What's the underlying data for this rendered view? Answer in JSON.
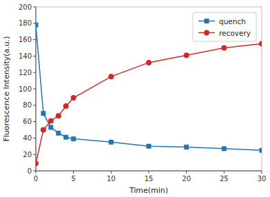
{
  "chart_data": {
    "type": "line",
    "x": [
      0,
      1,
      2,
      3,
      4,
      5,
      10,
      15,
      20,
      25,
      30
    ],
    "series": [
      {
        "name": "quench",
        "marker": "square",
        "values": [
          178,
          70,
          53,
          46,
          41,
          39,
          35,
          30,
          29,
          27,
          25
        ]
      },
      {
        "name": "recovery",
        "marker": "circle",
        "values": [
          9,
          50,
          61,
          67,
          79,
          89,
          115,
          132,
          141,
          150,
          155
        ]
      }
    ],
    "xlabel": "Time(min)",
    "ylabel": "Fluorescence Intensity(a.u.)",
    "xlim": [
      0,
      30
    ],
    "ylim": [
      0,
      200
    ],
    "xticks": [
      0,
      5,
      10,
      15,
      20,
      25,
      30
    ],
    "yticks": [
      0,
      20,
      40,
      60,
      80,
      100,
      120,
      140,
      160,
      180,
      200
    ],
    "grid": false,
    "legend": "upper right"
  }
}
